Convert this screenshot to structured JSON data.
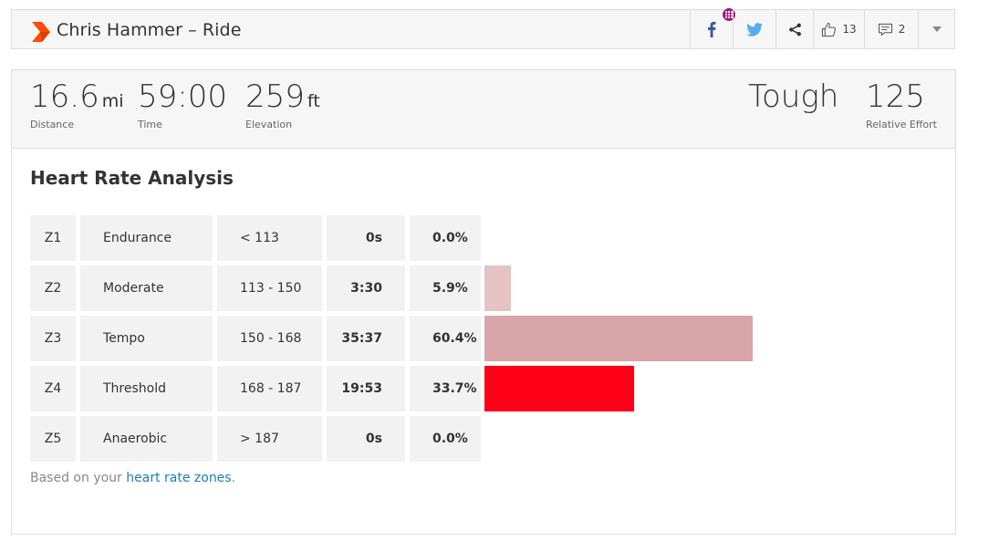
{
  "header": {
    "title": "Chris Hammer – Ride",
    "kudos_count": "13",
    "comments_count": "2"
  },
  "stats": {
    "distance": {
      "value": "16.6",
      "unit": "mi",
      "label": "Distance"
    },
    "time": {
      "value": "59:00",
      "label": "Time"
    },
    "elevation": {
      "value": "259",
      "unit": "ft",
      "label": "Elevation"
    },
    "effort_word": "Tough",
    "relative_effort": {
      "value": "125",
      "label": "Relative Effort"
    }
  },
  "analysis": {
    "title": "Heart Rate Analysis",
    "zones": [
      {
        "zone": "Z1",
        "name": "Endurance",
        "range": "< 113",
        "time": "0s",
        "pct": "0.0%",
        "pct_value": 0.0,
        "color": "#f0d5d7"
      },
      {
        "zone": "Z2",
        "name": "Moderate",
        "range": "113 - 150",
        "time": "3:30",
        "pct": "5.9%",
        "pct_value": 5.9,
        "color": "#e5c2c4"
      },
      {
        "zone": "Z3",
        "name": "Tempo",
        "range": "150 - 168",
        "time": "35:37",
        "pct": "60.4%",
        "pct_value": 60.4,
        "color": "#d8a6a8"
      },
      {
        "zone": "Z4",
        "name": "Threshold",
        "range": "168 - 187",
        "time": "19:53",
        "pct": "33.7%",
        "pct_value": 33.7,
        "color": "#ff0018"
      },
      {
        "zone": "Z5",
        "name": "Anaerobic",
        "range": "> 187",
        "time": "0s",
        "pct": "0.0%",
        "pct_value": 0.0,
        "color": "#ff0018"
      }
    ],
    "footnote_prefix": "Based on your ",
    "footnote_link": "heart rate zones",
    "footnote_suffix": "."
  },
  "colors": {
    "brand": "#fc4c02",
    "effort": "#b0142a",
    "link": "#1a80b6",
    "badge": "#a0177b"
  },
  "icons": [
    "strava-logo-icon",
    "facebook-icon",
    "twitter-icon",
    "share-icon",
    "thumbs-up-icon",
    "comment-icon",
    "chevron-down-icon",
    "club-badge-icon"
  ]
}
